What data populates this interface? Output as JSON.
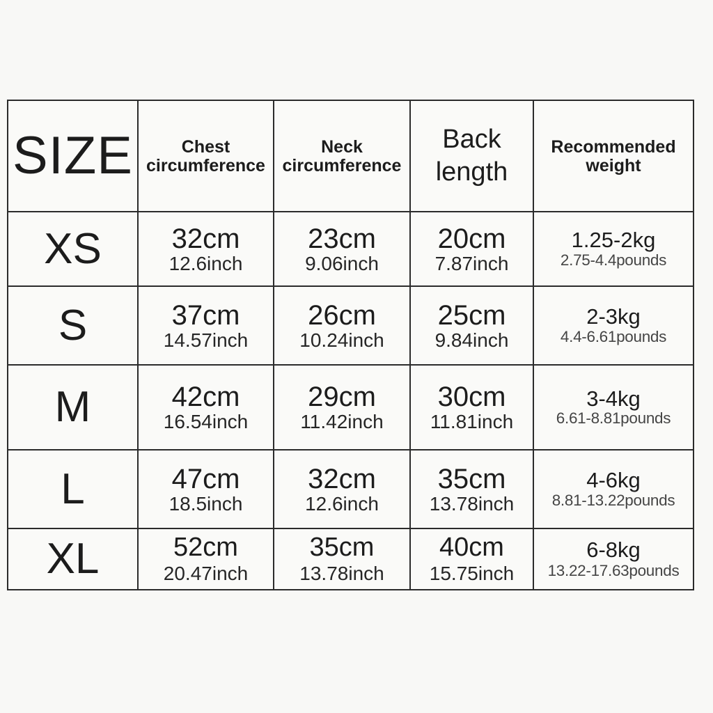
{
  "table": {
    "header": {
      "size": "SIZE",
      "chest_line1": "Chest",
      "chest_line2": "circumference",
      "neck_line1": "Neck",
      "neck_line2": "circumference",
      "back_line1": "Back",
      "back_line2": "length",
      "weight_line1": "Recommended",
      "weight_line2": "weight"
    },
    "rows": [
      {
        "size": "XS",
        "chest_cm": "32cm",
        "chest_in": "12.6inch",
        "neck_cm": "23cm",
        "neck_in": "9.06inch",
        "back_cm": "20cm",
        "back_in": "7.87inch",
        "weight_kg": "1.25-2kg",
        "weight_lb": "2.75-4.4pounds"
      },
      {
        "size": "S",
        "chest_cm": "37cm",
        "chest_in": "14.57inch",
        "neck_cm": "26cm",
        "neck_in": "10.24inch",
        "back_cm": "25cm",
        "back_in": "9.84inch",
        "weight_kg": "2-3kg",
        "weight_lb": "4.4-6.61pounds"
      },
      {
        "size": "M",
        "chest_cm": "42cm",
        "chest_in": "16.54inch",
        "neck_cm": "29cm",
        "neck_in": "11.42inch",
        "back_cm": "30cm",
        "back_in": "11.81inch",
        "weight_kg": "3-4kg",
        "weight_lb": "6.61-8.81pounds"
      },
      {
        "size": "L",
        "chest_cm": "47cm",
        "chest_in": "18.5inch",
        "neck_cm": "32cm",
        "neck_in": "12.6inch",
        "back_cm": "35cm",
        "back_in": "13.78inch",
        "weight_kg": "4-6kg",
        "weight_lb": "8.81-13.22pounds"
      },
      {
        "size": "XL",
        "chest_cm": "52cm",
        "chest_in": "20.47inch",
        "neck_cm": "35cm",
        "neck_in": "13.78inch",
        "back_cm": "40cm",
        "back_in": "15.75inch",
        "weight_kg": "6-8kg",
        "weight_lb": "13.22-17.63pounds"
      }
    ]
  }
}
